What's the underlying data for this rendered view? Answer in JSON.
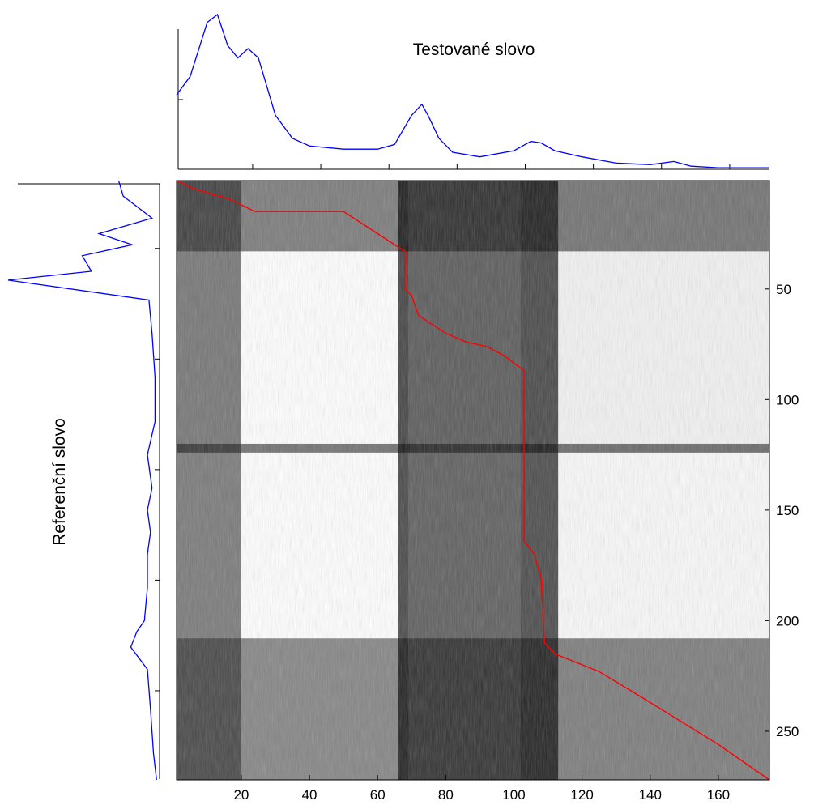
{
  "chart_data": [
    {
      "type": "heatmap",
      "description_role": "dtw-distance-matrix",
      "x": {
        "ticks": [
          20,
          40,
          60,
          80,
          100,
          120,
          140,
          160
        ],
        "range": [
          1,
          175
        ]
      },
      "y": {
        "ticks": [
          50,
          100,
          150,
          200,
          250
        ],
        "range": [
          1,
          272
        ],
        "reversed": true
      },
      "colormap": "gray",
      "path_color": "#ff0000",
      "warping_path": [
        [
          1,
          1
        ],
        [
          5,
          4
        ],
        [
          11,
          7
        ],
        [
          16,
          9
        ],
        [
          24,
          15
        ],
        [
          35,
          15
        ],
        [
          50,
          15
        ],
        [
          60,
          25
        ],
        [
          68,
          33
        ],
        [
          68,
          50
        ],
        [
          70,
          53
        ],
        [
          72,
          62
        ],
        [
          80,
          70
        ],
        [
          86,
          74
        ],
        [
          92,
          76
        ],
        [
          97,
          80
        ],
        [
          103,
          87
        ],
        [
          103,
          164
        ],
        [
          106,
          170
        ],
        [
          108,
          181
        ],
        [
          109,
          210
        ],
        [
          112,
          215
        ],
        [
          125,
          223
        ],
        [
          140,
          237
        ],
        [
          160,
          256
        ],
        [
          175,
          272
        ]
      ],
      "column_bands": [
        {
          "range": [
            1,
            20
          ],
          "level": 0.35
        },
        {
          "range": [
            20,
            66
          ],
          "level": 0.9
        },
        {
          "range": [
            66,
            69
          ],
          "level": 0.1
        },
        {
          "range": [
            69,
            102
          ],
          "level": 0.22
        },
        {
          "range": [
            102,
            113
          ],
          "level": 0.12
        },
        {
          "range": [
            113,
            175
          ],
          "level": 0.82
        }
      ],
      "row_bands": [
        {
          "range": [
            1,
            33
          ],
          "level": 0.3
        },
        {
          "range": [
            33,
            120
          ],
          "level": 0.85
        },
        {
          "range": [
            120,
            124
          ],
          "level": 0.25
        },
        {
          "range": [
            124,
            208
          ],
          "level": 0.9
        },
        {
          "range": [
            208,
            272
          ],
          "level": 0.35
        }
      ]
    },
    {
      "type": "line",
      "title": "Testované slovo",
      "color": "#0000ff",
      "x": [
        1,
        5,
        10,
        13,
        16,
        19,
        22,
        25,
        30,
        35,
        40,
        50,
        60,
        65,
        70,
        73,
        75,
        78,
        82,
        90,
        100,
        105,
        108,
        112,
        120,
        130,
        140,
        147,
        152,
        160,
        175
      ],
      "values": [
        0.48,
        0.6,
        0.95,
        1.0,
        0.8,
        0.72,
        0.78,
        0.72,
        0.35,
        0.2,
        0.15,
        0.13,
        0.13,
        0.16,
        0.35,
        0.42,
        0.34,
        0.2,
        0.11,
        0.08,
        0.12,
        0.18,
        0.17,
        0.12,
        0.08,
        0.04,
        0.03,
        0.05,
        0.02,
        0.01,
        0.01
      ]
    },
    {
      "type": "line",
      "xlabel": "Referenční slovo",
      "orientation": "vertical",
      "color": "#0000ff",
      "y": [
        1,
        8,
        18,
        25,
        30,
        35,
        42,
        46,
        55,
        70,
        90,
        110,
        125,
        140,
        150,
        160,
        170,
        185,
        200,
        205,
        212,
        222,
        240,
        260,
        272
      ],
      "values": [
        0.27,
        0.24,
        0.05,
        0.4,
        0.18,
        0.51,
        0.45,
        1.0,
        0.07,
        0.05,
        0.03,
        0.03,
        0.08,
        0.05,
        0.08,
        0.06,
        0.08,
        0.08,
        0.1,
        0.15,
        0.19,
        0.08,
        0.06,
        0.04,
        0.02
      ]
    }
  ]
}
